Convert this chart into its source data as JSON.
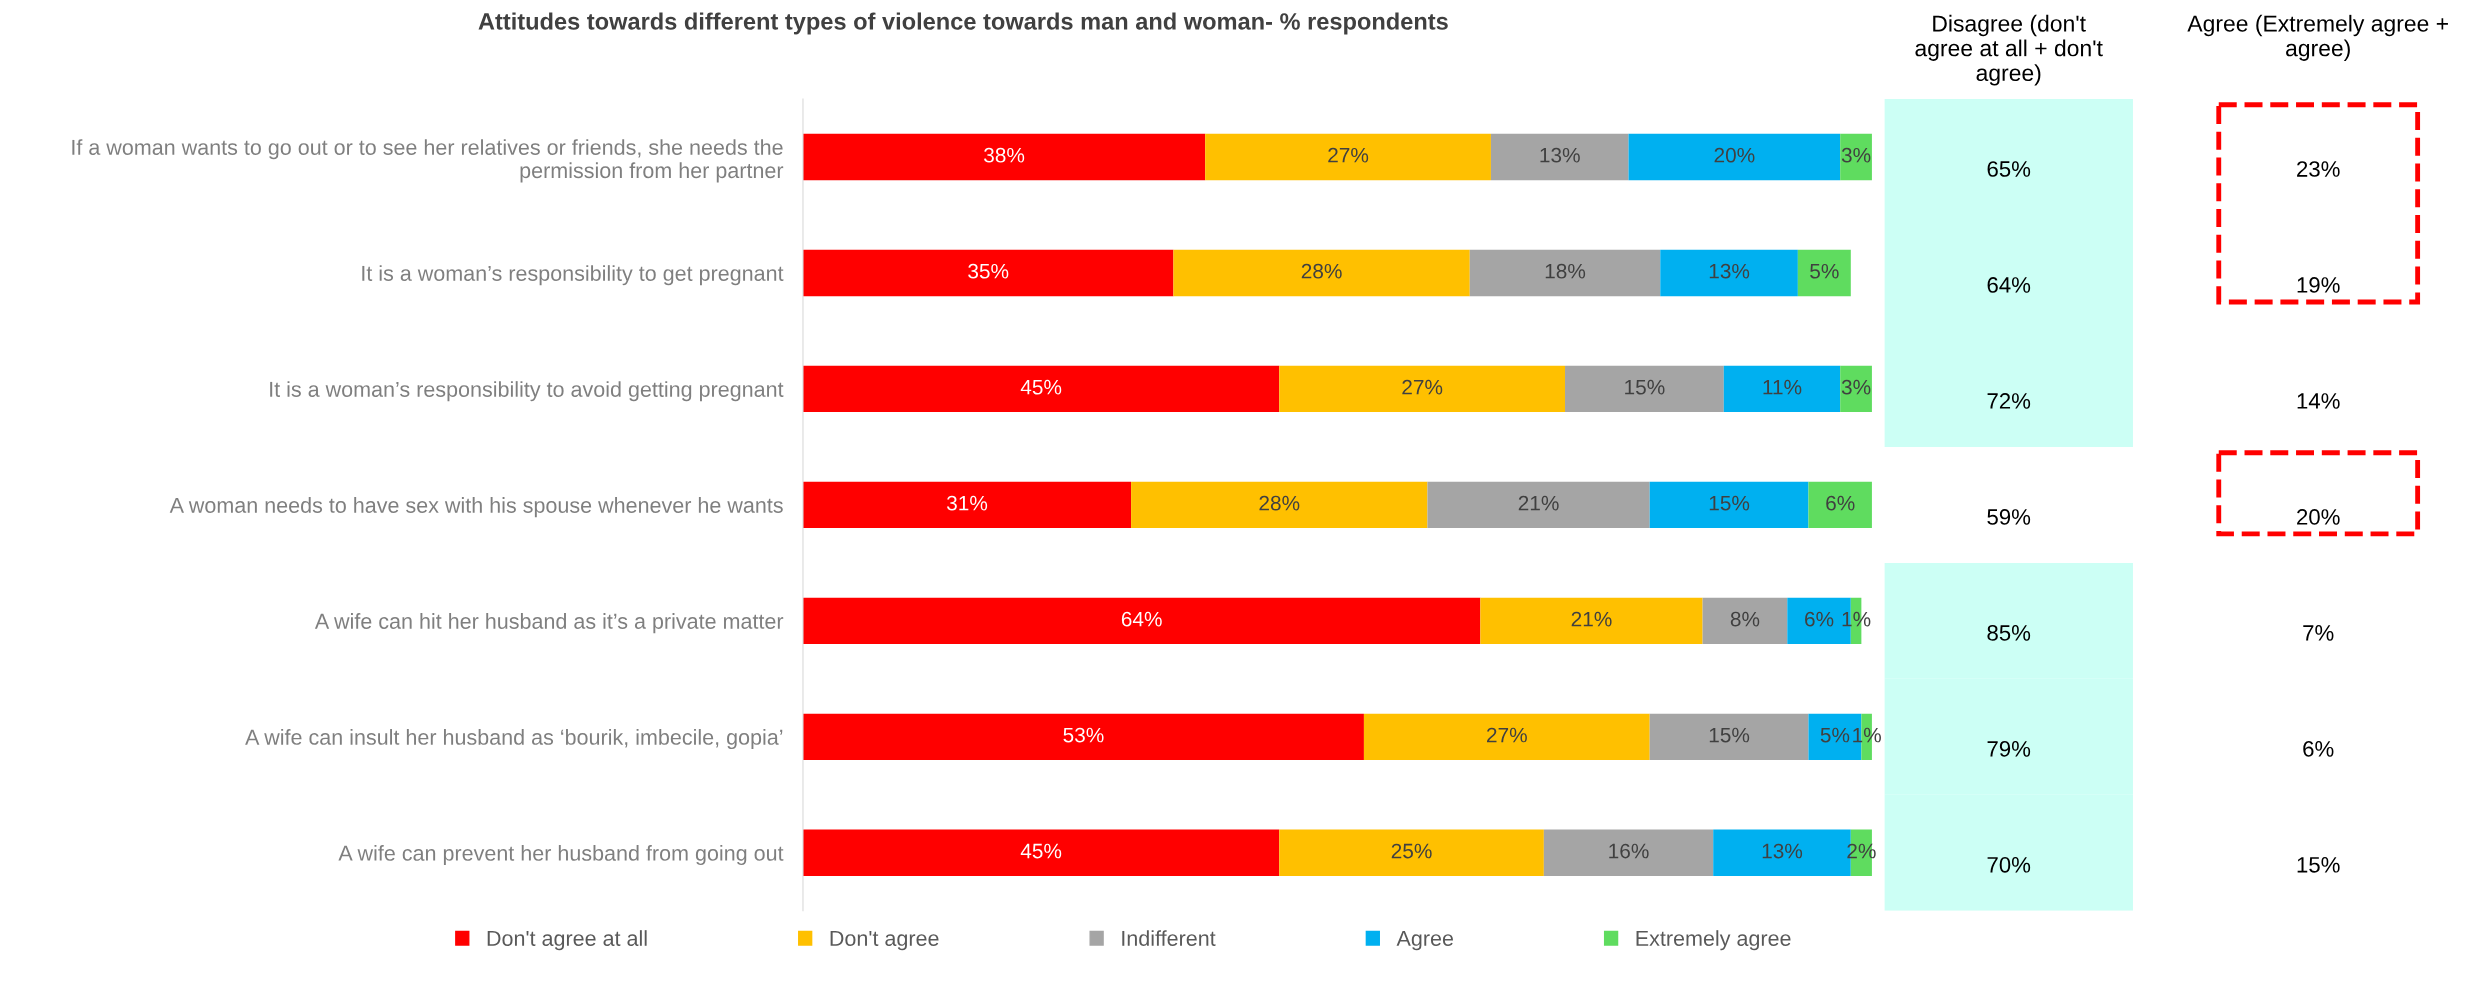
{
  "chart_data": [
    {
      "type": "bar",
      "orientation": "horizontal",
      "stacked": true,
      "title": "Attitudes towards different types of violence towards man and woman- % respondents",
      "categories": [
        "If a woman wants to go out or to see her relatives or friends, she needs the permission from her partner",
        "It is a woman’s responsibility to get pregnant",
        "It is a woman’s responsibility to avoid getting pregnant",
        "A woman needs to have sex with his spouse whenever he wants",
        "A wife can hit her husband as it’s a private matter",
        "A wife can insult her husband as ‘bourik, imbecile, gopia’",
        "A wife can prevent her husband from going out"
      ],
      "series": [
        {
          "name": "Don't agree at all",
          "color": "#ff0000",
          "values": [
            38,
            35,
            45,
            31,
            64,
            53,
            45
          ],
          "value_labels": [
            "38%",
            "35%",
            "45%",
            "31%",
            "64%",
            "53%",
            "45%"
          ]
        },
        {
          "name": "Don't agree",
          "color": "#ffc000",
          "values": [
            27,
            28,
            27,
            28,
            21,
            27,
            25
          ],
          "value_labels": [
            "27%",
            "28%",
            "27%",
            "28%",
            "21%",
            "27%",
            "25%"
          ]
        },
        {
          "name": "Indifferent",
          "color": "#a5a5a5",
          "values": [
            13,
            18,
            15,
            21,
            8,
            15,
            16
          ],
          "value_labels": [
            "13%",
            "18%",
            "15%",
            "21%",
            "8%",
            "15%",
            "16%"
          ]
        },
        {
          "name": "Agree",
          "color": "#00b0f0",
          "values": [
            20,
            13,
            11,
            15,
            6,
            5,
            13
          ],
          "value_labels": [
            "20%",
            "13%",
            "11%",
            "15%",
            "6%",
            "5%",
            "13%"
          ]
        },
        {
          "name": "Extremely agree",
          "color": "#5fdc5f",
          "values": [
            3,
            5,
            3,
            6,
            1,
            1,
            2
          ],
          "value_labels": [
            "3%",
            "5%",
            "3%",
            "6%",
            "1%",
            "1%",
            "2%"
          ]
        }
      ],
      "tick_labels": "y",
      "legend": "bottom",
      "grid": false
    },
    {
      "type": "other",
      "title": "Disagree (don't\nagree at all + don't\nagree)",
      "annotations": [
        "65%",
        "64%",
        "72%",
        "59%",
        "85%",
        "79%",
        "70%"
      ],
      "colors": [
        "#ccfff5",
        "#ccfff5",
        "#ccfff5",
        null,
        "#ccfff5",
        "#ccfff5",
        "#ccfff5"
      ]
    },
    {
      "type": "other",
      "title": "Agree (Extremely agree +\nagree)",
      "annotations": [
        "23%",
        "19%",
        "14%",
        "20%",
        "7%",
        "6%",
        "15%"
      ]
    }
  ]
}
